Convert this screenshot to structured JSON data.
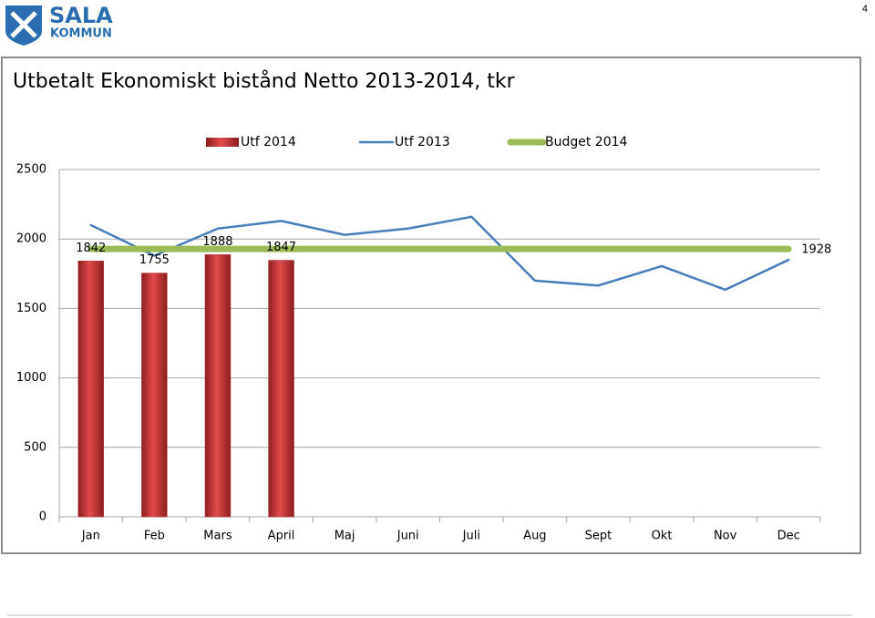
{
  "logo": {
    "name": "SALA",
    "subname": "KOMMUN"
  },
  "page_number": "4",
  "chart_data": {
    "type": "combo",
    "title": "Utbetalt Ekonomiskt bistånd Netto 2013-2014, tkr",
    "categories": [
      "Jan",
      "Feb",
      "Mars",
      "April",
      "Maj",
      "Juni",
      "Juli",
      "Aug",
      "Sept",
      "Okt",
      "Nov",
      "Dec"
    ],
    "series": [
      {
        "name": "Utf 2014",
        "type": "bar",
        "color": "#c0393b",
        "labels": "all",
        "values": [
          1842,
          1755,
          1888,
          1847,
          null,
          null,
          null,
          null,
          null,
          null,
          null,
          null
        ]
      },
      {
        "name": "Utf 2013",
        "type": "line",
        "color": "#4a7ebb",
        "labels": "none",
        "values": [
          2100,
          1880,
          2075,
          2130,
          2030,
          2075,
          2160,
          1700,
          1665,
          1805,
          1635,
          1850
        ]
      },
      {
        "name": "Budget 2014",
        "type": "line",
        "color": "#9bbb59",
        "labels": "last",
        "values": [
          1928,
          1928,
          1928,
          1928,
          1928,
          1928,
          1928,
          1928,
          1928,
          1928,
          1928,
          1928
        ]
      }
    ],
    "ylim": [
      0,
      2500
    ],
    "yticks": [
      0,
      500,
      1000,
      1500,
      2000,
      2500
    ],
    "grid": true,
    "legend": "top"
  }
}
